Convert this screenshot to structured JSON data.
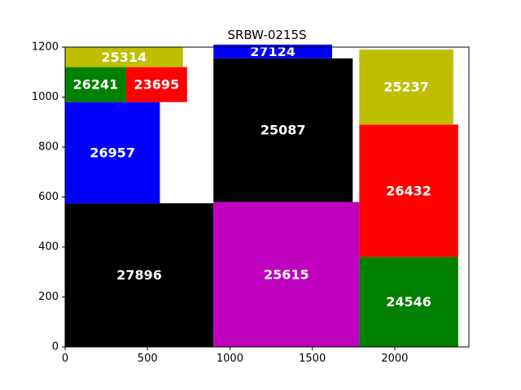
{
  "chart_data": {
    "type": "treemap",
    "title": "SRBW-0215S",
    "xlim": [
      0,
      2450
    ],
    "ylim": [
      0,
      1200
    ],
    "xticks": [
      0,
      500,
      1000,
      1500,
      2000
    ],
    "yticks": [
      0,
      200,
      400,
      600,
      800,
      1000,
      1200
    ],
    "grid": false,
    "rects": [
      {
        "label": "27896",
        "x0": 0,
        "x1": 900,
        "y0": 0,
        "y1": 575,
        "color": "#000000"
      },
      {
        "label": "26957",
        "x0": 0,
        "x1": 575,
        "y0": 575,
        "y1": 980,
        "color": "#0000ff"
      },
      {
        "label": "26241",
        "x0": 0,
        "x1": 370,
        "y0": 980,
        "y1": 1120,
        "color": "#008000"
      },
      {
        "label": "23695",
        "x0": 370,
        "x1": 740,
        "y0": 980,
        "y1": 1120,
        "color": "#ff0000"
      },
      {
        "label": "25314",
        "x0": 0,
        "x1": 715,
        "y0": 1120,
        "y1": 1200,
        "color": "#bfbf00"
      },
      {
        "label": "25615",
        "x0": 900,
        "x1": 1785,
        "y0": 0,
        "y1": 580,
        "color": "#bf00bf"
      },
      {
        "label": "25087",
        "x0": 900,
        "x1": 1745,
        "y0": 580,
        "y1": 1155,
        "color": "#000000"
      },
      {
        "label": "27124",
        "x0": 900,
        "x1": 1620,
        "y0": 1155,
        "y1": 1210,
        "color": "#0000ff"
      },
      {
        "label": "24546",
        "x0": 1785,
        "x1": 2385,
        "y0": 0,
        "y1": 360,
        "color": "#008000"
      },
      {
        "label": "26432",
        "x0": 1785,
        "x1": 2385,
        "y0": 360,
        "y1": 890,
        "color": "#ff0000"
      },
      {
        "label": "25237",
        "x0": 1785,
        "x1": 2355,
        "y0": 890,
        "y1": 1190,
        "color": "#bfbf00"
      }
    ]
  }
}
